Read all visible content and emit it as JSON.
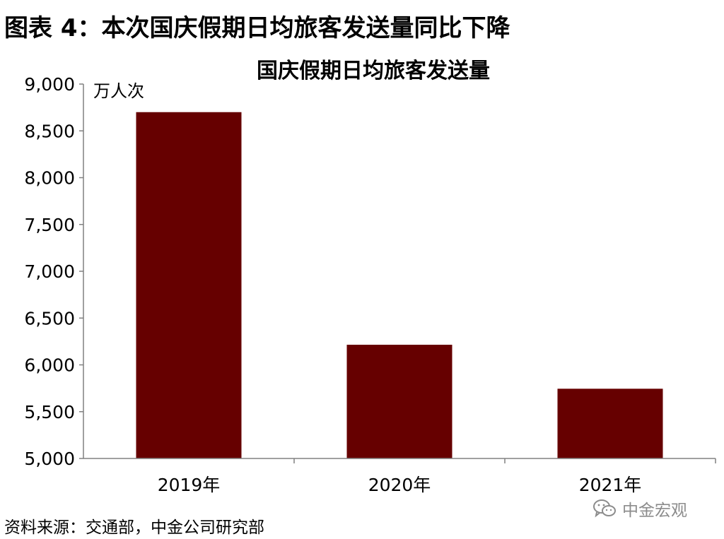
{
  "figure_title": "图表 4：本次国庆假期日均旅客发送量同比下降",
  "source_note": "资料来源：交通部，中金公司研究部",
  "watermark": {
    "icon": "wechat-icon",
    "text": "中金宏观"
  },
  "colors": {
    "bar": "#660000",
    "axis": "#808080",
    "text": "#000000"
  },
  "chart_data": {
    "type": "bar",
    "title": "国庆假期日均旅客发送量",
    "unit_label": "万人次",
    "categories": [
      "2019年",
      "2020年",
      "2021年"
    ],
    "values": [
      8700,
      6215,
      5745
    ],
    "ylim": [
      5000,
      9000
    ],
    "yticks": [
      5000,
      5500,
      6000,
      6500,
      7000,
      7500,
      8000,
      8500,
      9000
    ],
    "ytick_labels": [
      "5,000",
      "5,500",
      "6,000",
      "6,500",
      "7,000",
      "7,500",
      "8,000",
      "8,500",
      "9,000"
    ],
    "grid": false,
    "legend": false
  }
}
